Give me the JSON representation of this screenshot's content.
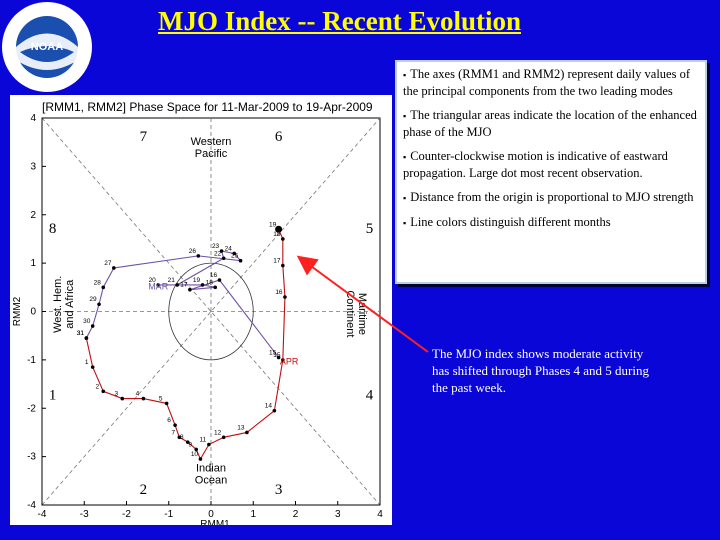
{
  "header": {
    "title": "MJO Index -- Recent Evolution",
    "logo_text_top": "NATIONAL OCEANIC AND ATMOSPHERIC ADMINISTRATION",
    "logo_text_bottom": "U.S. DEPARTMENT OF COMMERCE",
    "logo_center": "NOAA"
  },
  "notes": [
    {
      "bullet": "▪",
      "text": "The axes (RMM1 and RMM2) represent daily values of the principal components from the two leading modes"
    },
    {
      "bullet": "▪",
      "text": "The triangular areas indicate the location of the enhanced phase of the MJO"
    },
    {
      "bullet": "▪",
      "text": "Counter-clockwise motion is indicative of eastward propagation. Large dot most recent observation."
    },
    {
      "bullet": "▪",
      "text": "Distance from the origin is proportional to MJO strength"
    },
    {
      "bullet": "▪",
      "text": "Line colors distinguish different months"
    }
  ],
  "callout": "The MJO index shows moderate activity has shifted through Phases 4 and 5 during the past week.",
  "colors": {
    "background": "#0b06d8",
    "title": "#ffff00",
    "march_line": "#7050a8",
    "april_line": "#c01010",
    "arrow": "#ff2020"
  },
  "chart_data": {
    "type": "scatter",
    "title": "[RMM1, RMM2] Phase Space for 11-Mar-2009 to 19-Apr-2009",
    "xlabel": "RMM1",
    "ylabel": "RMM2",
    "xlim": [
      -4,
      4
    ],
    "ylim": [
      -4,
      4
    ],
    "xticks": [
      -4,
      -3,
      -2,
      -1,
      0,
      1,
      2,
      3,
      4
    ],
    "yticks": [
      -4,
      -3,
      -2,
      -1,
      0,
      1,
      2,
      3,
      4
    ],
    "phase_numbers": [
      {
        "label": "7",
        "x": -1.6,
        "y": 3.65
      },
      {
        "label": "6",
        "x": 1.6,
        "y": 3.65
      },
      {
        "label": "8",
        "x": -3.75,
        "y": 1.75
      },
      {
        "label": "5",
        "x": 3.75,
        "y": 1.75
      },
      {
        "label": "1",
        "x": -3.75,
        "y": -1.7
      },
      {
        "label": "4",
        "x": 3.75,
        "y": -1.7
      },
      {
        "label": "2",
        "x": -1.6,
        "y": -3.65
      },
      {
        "label": "3",
        "x": 1.6,
        "y": -3.65
      }
    ],
    "regions": [
      {
        "lines": [
          "Western",
          "Pacific"
        ],
        "x": 0,
        "y": 3.4,
        "rotate": 0
      },
      {
        "lines": [
          "Indian",
          "Ocean"
        ],
        "x": 0,
        "y": -3.35,
        "rotate": 0
      },
      {
        "lines": [
          "West. Hem.",
          "and Africa"
        ],
        "x": -3.5,
        "y": 0.15,
        "rotate": -90
      },
      {
        "lines": [
          "Maritime",
          "Continent"
        ],
        "x": 3.45,
        "y": -0.05,
        "rotate": 90
      }
    ],
    "series": [
      {
        "name": "MAR",
        "color": "#7050a8",
        "label_pos": {
          "x": -1.25,
          "y": 0.45
        },
        "points": [
          {
            "x": 1.6,
            "y": -0.95,
            "label": "15"
          },
          {
            "x": 0.2,
            "y": 0.65,
            "label": "16"
          },
          {
            "x": -0.5,
            "y": 0.45,
            "label": "17"
          },
          {
            "x": 0.1,
            "y": 0.5,
            "label": "18"
          },
          {
            "x": -0.2,
            "y": 0.55,
            "label": "19"
          },
          {
            "x": -1.25,
            "y": 0.55,
            "label": "20"
          },
          {
            "x": -0.8,
            "y": 0.55,
            "label": "21"
          },
          {
            "x": 0.3,
            "y": 1.1,
            "label": "22"
          },
          {
            "x": 0.25,
            "y": 1.25,
            "label": "23"
          },
          {
            "x": 0.55,
            "y": 1.2,
            "label": "24"
          },
          {
            "x": 0.7,
            "y": 1.05,
            "label": "25"
          },
          {
            "x": -0.3,
            "y": 1.15,
            "label": "26"
          },
          {
            "x": -2.3,
            "y": 0.9,
            "label": "27"
          },
          {
            "x": -2.55,
            "y": 0.5,
            "label": "28"
          },
          {
            "x": -2.65,
            "y": 0.15,
            "label": "29"
          },
          {
            "x": -2.8,
            "y": -0.3,
            "label": "30"
          },
          {
            "x": -2.95,
            "y": -0.55,
            "label": "31"
          }
        ]
      },
      {
        "name": "APR",
        "color": "#c01010",
        "label_pos": {
          "x": 1.85,
          "y": -1.1
        },
        "points": [
          {
            "x": -2.95,
            "y": -0.55,
            "label": "31"
          },
          {
            "x": -2.8,
            "y": -1.15,
            "label": "1"
          },
          {
            "x": -2.55,
            "y": -1.65,
            "label": "2"
          },
          {
            "x": -2.1,
            "y": -1.8,
            "label": "3"
          },
          {
            "x": -1.6,
            "y": -1.8,
            "label": "4"
          },
          {
            "x": -1.05,
            "y": -1.9,
            "label": "5"
          },
          {
            "x": -0.85,
            "y": -2.35,
            "label": "6"
          },
          {
            "x": -0.75,
            "y": -2.6,
            "label": "7"
          },
          {
            "x": -0.55,
            "y": -2.7,
            "label": "8"
          },
          {
            "x": -0.35,
            "y": -2.85,
            "label": "9"
          },
          {
            "x": -0.25,
            "y": -3.05,
            "label": "10"
          },
          {
            "x": -0.05,
            "y": -2.75,
            "label": "11"
          },
          {
            "x": 0.3,
            "y": -2.6,
            "label": "12"
          },
          {
            "x": 0.85,
            "y": -2.5,
            "label": "13"
          },
          {
            "x": 1.5,
            "y": -2.05,
            "label": "14"
          },
          {
            "x": 1.7,
            "y": -1.0,
            "label": "15"
          },
          {
            "x": 1.75,
            "y": 0.3,
            "label": "16"
          },
          {
            "x": 1.7,
            "y": 0.95,
            "label": "17"
          },
          {
            "x": 1.7,
            "y": 1.5,
            "label": "18"
          },
          {
            "x": 1.6,
            "y": 1.7,
            "label": "19"
          }
        ]
      }
    ],
    "latest_point": {
      "x": 1.6,
      "y": 1.7
    },
    "unit_circle_radius": 1
  }
}
